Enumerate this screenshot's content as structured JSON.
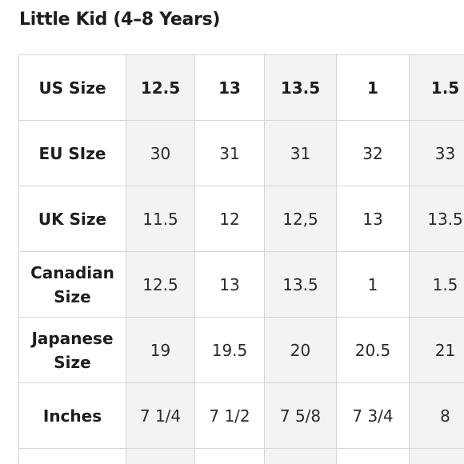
{
  "title": "Little Kid (4–8 Years)",
  "table": {
    "header": {
      "label": "US Size",
      "values": [
        "12.5",
        "13",
        "13.5",
        "1",
        "1.5"
      ]
    },
    "rows": [
      {
        "label": "EU SIze",
        "values": [
          "30",
          "31",
          "31",
          "32",
          "33"
        ]
      },
      {
        "label": "UK Size",
        "values": [
          "11.5",
          "12",
          "12,5",
          "13",
          "13.5"
        ]
      },
      {
        "label": "Canadian Size",
        "values": [
          "12.5",
          "13",
          "13.5",
          "1",
          "1.5"
        ]
      },
      {
        "label": "Japanese Size",
        "values": [
          "19",
          "19.5",
          "20",
          "20.5",
          "21"
        ]
      },
      {
        "label": "Inches",
        "values": [
          "7 1/4",
          "7 1/2",
          "7 5/8",
          "7 3/4",
          "8"
        ]
      }
    ]
  },
  "colors": {
    "text": "#1d1d1d",
    "grid": "#d6d6d6",
    "shaded_column": "#f2f3f5"
  }
}
